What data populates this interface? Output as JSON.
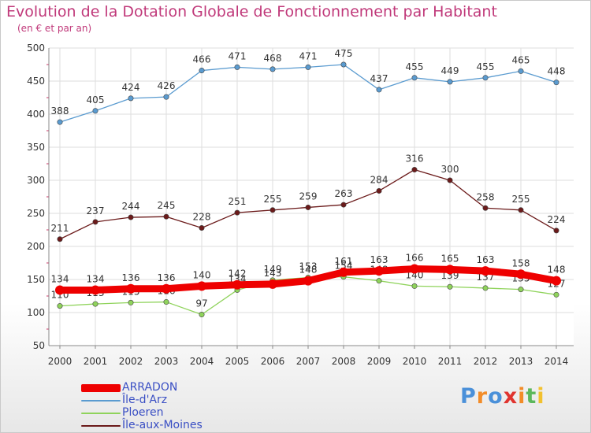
{
  "chart_data": {
    "type": "line",
    "title": "Evolution de la Dotation Globale de Fonctionnement par Habitant",
    "subtitle": "(en € et par an)",
    "x": [
      "2000",
      "2001",
      "2002",
      "2003",
      "2004",
      "2005",
      "2006",
      "2007",
      "2008",
      "2009",
      "2010",
      "2011",
      "2012",
      "2013",
      "2014"
    ],
    "ylim": [
      50,
      500
    ],
    "yticks": [
      50,
      100,
      150,
      200,
      250,
      300,
      350,
      400,
      450,
      500
    ],
    "grid": true,
    "legend_position": "bottom-left",
    "series": [
      {
        "name": "Île-aux-Moines",
        "color": "#6b1a1a",
        "values": [
          211,
          237,
          244,
          245,
          228,
          251,
          255,
          259,
          263,
          284,
          316,
          300,
          258,
          255,
          224
        ]
      },
      {
        "name": "Île-d'Arz",
        "color": "#5a9bd0",
        "values": [
          388,
          405,
          424,
          426,
          466,
          471,
          468,
          471,
          475,
          437,
          455,
          449,
          455,
          465,
          448
        ]
      },
      {
        "name": "Ploeren",
        "color": "#8fd35b",
        "values": [
          110,
          113,
          115,
          116,
          97,
          134,
          149,
          153,
          154,
          148,
          140,
          139,
          137,
          135,
          127
        ]
      },
      {
        "name": "ARRADON",
        "color": "#ee0000",
        "values": [
          134,
          134,
          136,
          136,
          140,
          142,
          143,
          148,
          161,
          163,
          166,
          165,
          163,
          158,
          148
        ]
      }
    ],
    "legend_order": [
      "ARRADON",
      "Île-d'Arz",
      "Ploeren",
      "Île-aux-Moines"
    ]
  },
  "logo": {
    "letters": [
      {
        "char": "P",
        "color": "#4a90d9"
      },
      {
        "char": "r",
        "color": "#f28c28"
      },
      {
        "char": "o",
        "color": "#4a90d9"
      },
      {
        "char": "x",
        "color": "#e0342f"
      },
      {
        "char": "i",
        "color": "#f28c28"
      },
      {
        "char": "t",
        "color": "#5cb85c"
      },
      {
        "char": "i",
        "color": "#f2c12e"
      }
    ]
  }
}
